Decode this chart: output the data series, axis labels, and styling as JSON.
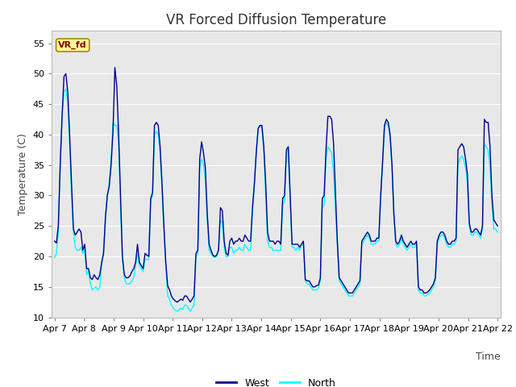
{
  "title": "VR Forced Diffusion Temperature",
  "ylabel": "Temperature (C)",
  "xlabel": "Time",
  "ylim": [
    10,
    57
  ],
  "yticks": [
    10,
    15,
    20,
    25,
    30,
    35,
    40,
    45,
    50,
    55
  ],
  "xtick_labels": [
    "Apr 7",
    "Apr 8",
    "Apr 9",
    "Apr 10",
    "Apr 11",
    "Apr 12",
    "Apr 13",
    "Apr 14",
    "Apr 15",
    "Apr 16",
    "Apr 17",
    "Apr 18",
    "Apr 19",
    "Apr 20",
    "Apr 21",
    "Apr 22"
  ],
  "west_color": "#00008B",
  "north_color": "#00FFFF",
  "bg_color": "#E8E8E8",
  "label_box_text": "VR_fd",
  "label_box_bg": "#FFFF99",
  "label_box_fg": "#8B0000",
  "grid_color": "#FFFFFF",
  "title_fontsize": 12,
  "axis_label_fontsize": 9,
  "tick_fontsize": 8,
  "west_data": [
    22.5,
    22.2,
    25.0,
    35.0,
    43.0,
    49.5,
    50.0,
    47.0,
    40.0,
    32.0,
    24.5,
    23.5,
    24.0,
    24.5,
    24.0,
    21.0,
    22.0,
    18.0,
    18.0,
    16.5,
    16.2,
    17.0,
    16.5,
    16.2,
    17.0,
    19.0,
    20.5,
    26.5,
    30.0,
    31.5,
    35.0,
    40.5,
    51.0,
    48.0,
    40.0,
    30.0,
    20.0,
    17.0,
    16.5,
    16.5,
    16.8,
    17.5,
    18.0,
    19.0,
    22.0,
    19.0,
    18.5,
    18.0,
    20.5,
    20.2,
    20.0,
    29.5,
    30.5,
    41.5,
    42.0,
    41.5,
    38.0,
    32.0,
    25.0,
    19.0,
    15.2,
    14.5,
    13.5,
    13.0,
    12.7,
    12.5,
    12.7,
    13.0,
    12.8,
    13.5,
    13.5,
    13.0,
    12.5,
    13.0,
    13.5,
    20.5,
    21.0,
    36.0,
    38.8,
    37.0,
    34.5,
    27.0,
    22.0,
    21.0,
    20.2,
    20.0,
    20.2,
    21.0,
    28.0,
    27.5,
    22.5,
    20.5,
    20.2,
    22.5,
    23.0,
    22.0,
    22.5,
    22.5,
    23.0,
    22.5,
    22.5,
    23.5,
    23.0,
    22.5,
    22.5,
    28.0,
    32.0,
    37.0,
    41.0,
    41.5,
    41.5,
    38.0,
    32.0,
    24.0,
    22.5,
    22.5,
    22.5,
    22.0,
    22.5,
    22.5,
    22.0,
    29.5,
    30.0,
    37.5,
    38.0,
    30.0,
    22.0,
    22.0,
    22.0,
    22.0,
    21.5,
    22.0,
    22.5,
    16.2,
    16.0,
    16.0,
    15.5,
    15.0,
    15.0,
    15.2,
    15.3,
    16.5,
    29.5,
    30.0,
    37.5,
    43.0,
    43.0,
    42.5,
    38.5,
    30.5,
    22.5,
    16.5,
    16.0,
    15.5,
    15.0,
    14.5,
    14.0,
    14.0,
    14.0,
    14.5,
    15.0,
    15.5,
    16.0,
    22.5,
    23.0,
    23.5,
    24.0,
    23.5,
    22.5,
    22.5,
    22.5,
    23.0,
    23.0,
    30.0,
    35.5,
    41.5,
    42.5,
    42.0,
    40.0,
    35.0,
    27.0,
    22.5,
    22.0,
    22.5,
    23.5,
    22.5,
    22.0,
    21.5,
    22.0,
    22.5,
    22.0,
    22.0,
    22.5,
    15.0,
    14.5,
    14.5,
    14.0,
    14.0,
    14.2,
    14.5,
    15.0,
    15.5,
    16.5,
    22.5,
    23.5,
    24.0,
    24.0,
    23.5,
    22.5,
    22.0,
    22.0,
    22.5,
    22.5,
    23.0,
    37.5,
    38.0,
    38.5,
    38.0,
    36.0,
    33.5,
    25.5,
    24.0,
    24.0,
    24.5,
    24.5,
    24.0,
    23.5,
    25.0,
    42.5,
    42.0,
    42.0,
    38.0,
    30.0,
    26.0,
    25.5,
    25.0
  ],
  "north_data": [
    19.8,
    20.5,
    24.0,
    35.0,
    43.0,
    47.0,
    47.5,
    45.0,
    38.5,
    30.0,
    24.0,
    21.5,
    21.0,
    21.0,
    21.5,
    20.5,
    21.0,
    17.0,
    17.5,
    15.5,
    14.5,
    14.8,
    15.0,
    14.5,
    15.0,
    18.5,
    21.0,
    26.0,
    30.0,
    32.0,
    36.0,
    42.0,
    41.5,
    41.5,
    38.5,
    28.0,
    19.5,
    16.5,
    15.5,
    15.5,
    15.5,
    16.0,
    16.5,
    18.5,
    21.0,
    18.5,
    18.0,
    17.5,
    19.5,
    19.5,
    19.5,
    29.0,
    30.0,
    40.0,
    40.5,
    40.0,
    37.0,
    31.0,
    24.5,
    18.5,
    13.5,
    13.0,
    12.0,
    11.5,
    11.2,
    11.0,
    11.2,
    11.5,
    11.3,
    12.0,
    12.0,
    11.5,
    11.0,
    11.5,
    12.0,
    20.0,
    20.5,
    34.5,
    36.0,
    35.0,
    32.5,
    26.0,
    21.0,
    20.5,
    20.0,
    19.8,
    20.0,
    21.5,
    26.0,
    25.5,
    21.5,
    20.0,
    20.0,
    21.5,
    21.5,
    20.5,
    21.0,
    21.0,
    21.5,
    21.0,
    21.0,
    22.0,
    21.5,
    21.0,
    21.0,
    27.5,
    31.5,
    37.5,
    41.0,
    41.5,
    41.0,
    37.5,
    30.0,
    22.5,
    21.5,
    21.5,
    21.0,
    21.0,
    21.0,
    21.0,
    21.0,
    28.5,
    29.0,
    37.0,
    37.5,
    29.0,
    21.5,
    21.5,
    21.0,
    21.5,
    21.0,
    22.0,
    22.0,
    16.0,
    15.5,
    15.5,
    15.0,
    14.5,
    14.5,
    14.5,
    14.8,
    16.0,
    28.0,
    28.5,
    36.0,
    38.0,
    37.5,
    37.0,
    33.5,
    27.5,
    22.0,
    16.0,
    15.5,
    15.0,
    14.5,
    14.0,
    13.5,
    13.5,
    13.5,
    14.0,
    14.5,
    15.0,
    15.5,
    22.0,
    22.5,
    23.0,
    23.5,
    23.0,
    22.0,
    22.0,
    22.0,
    22.5,
    22.5,
    29.5,
    35.0,
    41.0,
    42.0,
    41.5,
    39.5,
    34.5,
    26.5,
    22.0,
    21.5,
    22.0,
    23.0,
    22.0,
    21.5,
    21.0,
    21.5,
    22.0,
    21.5,
    21.5,
    22.0,
    14.5,
    14.0,
    14.0,
    13.5,
    13.5,
    13.8,
    14.0,
    14.5,
    15.0,
    16.0,
    22.0,
    23.0,
    23.5,
    23.5,
    23.0,
    22.0,
    21.5,
    21.5,
    22.0,
    22.0,
    22.5,
    35.0,
    36.0,
    36.5,
    36.0,
    34.5,
    32.0,
    25.0,
    23.5,
    23.5,
    24.0,
    24.0,
    23.5,
    23.0,
    24.5,
    38.5,
    38.0,
    37.5,
    34.5,
    28.5,
    24.5,
    24.5,
    24.0
  ]
}
